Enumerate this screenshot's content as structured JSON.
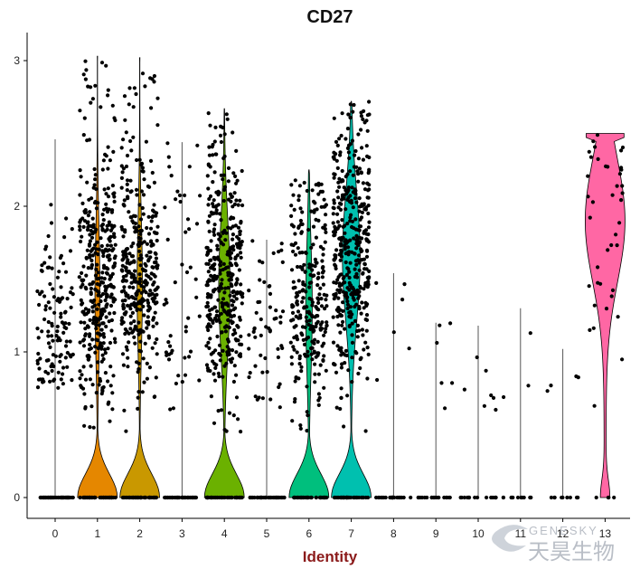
{
  "chart_data": {
    "type": "violin",
    "title": "CD27",
    "xlabel": "Identity",
    "ylabel": "",
    "ylim": [
      -0.15,
      3.2
    ],
    "yticks": [
      0,
      1,
      2,
      3
    ],
    "categories": [
      "0",
      "1",
      "2",
      "3",
      "4",
      "5",
      "6",
      "7",
      "8",
      "9",
      "10",
      "11",
      "12",
      "13"
    ],
    "colors": [
      "#F8766D",
      "#E58700",
      "#C99800",
      "#A3A500",
      "#6BB100",
      "#00BA38",
      "#00BF7D",
      "#00C0AF",
      "#00BCD8",
      "#00B0F6",
      "#619CFF",
      "#B983FF",
      "#E76BF3",
      "#FF67A4"
    ],
    "max_expression": [
      2.46,
      3.03,
      3.02,
      2.44,
      2.67,
      1.77,
      2.25,
      2.72,
      1.54,
      1.2,
      1.18,
      1.3,
      1.02,
      2.5
    ],
    "density_profiles": [
      {
        "cluster": "0",
        "shape": "line"
      },
      {
        "cluster": "1",
        "shape": "bimodal",
        "zero_width": 0.42,
        "upper_center": 1.4,
        "upper_width": 0.12
      },
      {
        "cluster": "2",
        "shape": "bimodal",
        "zero_width": 0.43,
        "upper_center": 1.45,
        "upper_width": 0.13
      },
      {
        "cluster": "3",
        "shape": "line"
      },
      {
        "cluster": "4",
        "shape": "bimodal",
        "zero_width": 0.5,
        "upper_center": 1.45,
        "upper_width": 0.28
      },
      {
        "cluster": "5",
        "shape": "line"
      },
      {
        "cluster": "6",
        "shape": "bimodal",
        "zero_width": 0.45,
        "upper_center": 1.3,
        "upper_width": 0.16
      },
      {
        "cluster": "7",
        "shape": "bimodal",
        "zero_width": 0.45,
        "upper_center": 1.65,
        "upper_width": 0.44
      },
      {
        "cluster": "8",
        "shape": "line"
      },
      {
        "cluster": "9",
        "shape": "line"
      },
      {
        "cluster": "10",
        "shape": "line"
      },
      {
        "cluster": "11",
        "shape": "line"
      },
      {
        "cluster": "12",
        "shape": "line"
      },
      {
        "cluster": "13",
        "shape": "wide",
        "zero_width": 0.2,
        "upper_center": 1.9,
        "upper_width": 0.42
      }
    ],
    "points_per_cluster": {
      "zero": [
        55,
        45,
        45,
        40,
        40,
        40,
        40,
        40,
        25,
        18,
        15,
        12,
        10,
        4
      ],
      "positive": [
        120,
        380,
        360,
        50,
        380,
        55,
        260,
        420,
        6,
        6,
        7,
        3,
        4,
        40
      ]
    },
    "grid": false,
    "legend": "none"
  },
  "watermark": {
    "en": "GENESKY",
    "cn": "天昊生物"
  }
}
